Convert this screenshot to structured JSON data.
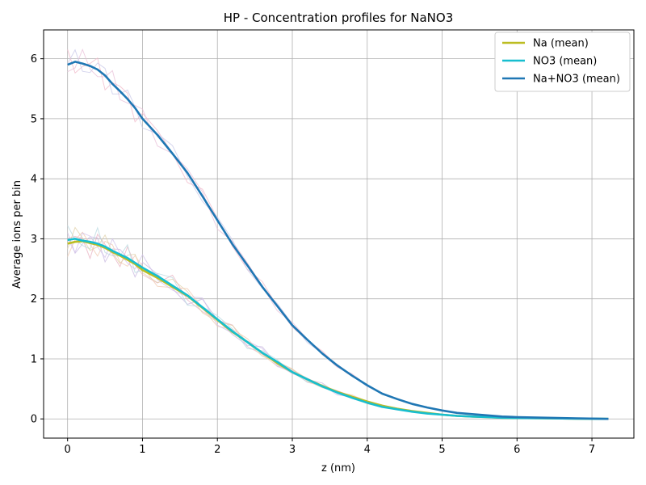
{
  "chart_data": {
    "type": "line",
    "title": "HP - Concentration profiles for NaNO3",
    "xlabel": "z (nm)",
    "ylabel": "Average ions per bin",
    "xlim": [
      -0.32,
      7.56
    ],
    "ylim": [
      -0.32,
      6.48
    ],
    "xticks": [
      0,
      1,
      2,
      3,
      4,
      5,
      6,
      7
    ],
    "yticks": [
      0,
      1,
      2,
      3,
      4,
      5,
      6
    ],
    "grid": true,
    "legend_position": "top-right",
    "series": [
      {
        "name": "Na (mean)",
        "color": "#bcbd22",
        "x": [
          0,
          0.1,
          0.2,
          0.3,
          0.4,
          0.5,
          0.6,
          0.7,
          0.8,
          0.9,
          1.0,
          1.2,
          1.4,
          1.6,
          1.8,
          2.0,
          2.2,
          2.4,
          2.6,
          2.8,
          3.0,
          3.2,
          3.4,
          3.6,
          3.8,
          4.0,
          4.2,
          4.4,
          4.6,
          4.8,
          5.0,
          5.2,
          5.4,
          5.6,
          5.8,
          6.0,
          6.4,
          6.8,
          7.22
        ],
        "y": [
          2.92,
          2.95,
          2.96,
          2.93,
          2.9,
          2.85,
          2.78,
          2.72,
          2.65,
          2.58,
          2.48,
          2.35,
          2.2,
          2.05,
          1.85,
          1.65,
          1.45,
          1.28,
          1.1,
          0.93,
          0.78,
          0.66,
          0.55,
          0.45,
          0.37,
          0.29,
          0.22,
          0.17,
          0.13,
          0.1,
          0.07,
          0.05,
          0.04,
          0.03,
          0.02,
          0.015,
          0.01,
          0.005,
          0.0
        ]
      },
      {
        "name": "NO3 (mean)",
        "color": "#17becf",
        "x": [
          0,
          0.1,
          0.2,
          0.3,
          0.4,
          0.5,
          0.6,
          0.7,
          0.8,
          0.9,
          1.0,
          1.2,
          1.4,
          1.6,
          1.8,
          2.0,
          2.2,
          2.4,
          2.6,
          2.8,
          3.0,
          3.2,
          3.4,
          3.6,
          3.8,
          4.0,
          4.2,
          4.4,
          4.6,
          4.8,
          5.0,
          5.2,
          5.4,
          5.6,
          5.8,
          6.0,
          6.4,
          6.8,
          7.22
        ],
        "y": [
          2.98,
          3.0,
          2.97,
          2.95,
          2.92,
          2.87,
          2.8,
          2.74,
          2.68,
          2.6,
          2.52,
          2.38,
          2.22,
          2.06,
          1.86,
          1.66,
          1.46,
          1.28,
          1.1,
          0.95,
          0.78,
          0.66,
          0.54,
          0.44,
          0.35,
          0.27,
          0.2,
          0.16,
          0.12,
          0.09,
          0.07,
          0.05,
          0.04,
          0.03,
          0.02,
          0.015,
          0.01,
          0.005,
          0.0
        ]
      },
      {
        "name": "Na+NO3 (mean)",
        "color": "#1f77b4",
        "x": [
          0,
          0.1,
          0.2,
          0.3,
          0.4,
          0.5,
          0.6,
          0.7,
          0.8,
          0.9,
          1.0,
          1.2,
          1.4,
          1.6,
          1.8,
          2.0,
          2.2,
          2.4,
          2.6,
          2.8,
          3.0,
          3.2,
          3.4,
          3.6,
          3.8,
          4.0,
          4.2,
          4.4,
          4.6,
          4.8,
          5.0,
          5.2,
          5.4,
          5.6,
          5.8,
          6.0,
          6.4,
          6.8,
          7.22
        ],
        "y": [
          5.9,
          5.95,
          5.92,
          5.88,
          5.82,
          5.72,
          5.58,
          5.46,
          5.33,
          5.18,
          5.0,
          4.73,
          4.42,
          4.1,
          3.71,
          3.31,
          2.91,
          2.56,
          2.2,
          1.88,
          1.56,
          1.32,
          1.09,
          0.89,
          0.72,
          0.56,
          0.42,
          0.33,
          0.25,
          0.19,
          0.14,
          0.1,
          0.08,
          0.06,
          0.04,
          0.03,
          0.02,
          0.01,
          0.0
        ]
      }
    ]
  }
}
